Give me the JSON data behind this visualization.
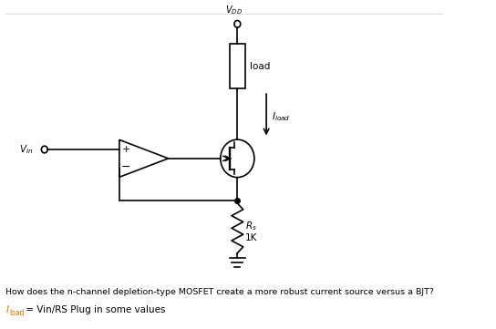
{
  "bg_color": "#ffffff",
  "line_color": "#000000",
  "text_color": "#000000",
  "orange_color": "#e07000",
  "figsize": [
    5.44,
    3.61
  ],
  "dpi": 100,
  "vdd_label": "V$_{DD}$",
  "load_label": "load",
  "vin_label": "V$_{in}$",
  "iload_label": "$I_{load}$",
  "rs_label": "$R_s$",
  "rs_val": "1K",
  "question": "How does the n-channel depletion-type MOSFET create a more robust current source versus a BJT?",
  "equation_prefix": "I",
  "equation_sub": "load",
  "equation_body": " = Vin/RS Plug in some values",
  "plus_label": "+",
  "minus_label": "−"
}
